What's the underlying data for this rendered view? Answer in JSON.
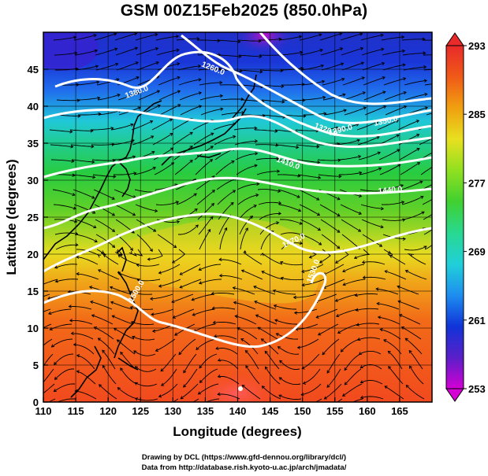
{
  "title": "GSM 00Z15Feb2025 (850.0hPa)",
  "xaxis": {
    "label": "Longitude (degrees)",
    "range": [
      110,
      170
    ],
    "ticks": [
      "110",
      "115",
      "120",
      "125",
      "130",
      "135",
      "140",
      "145",
      "150",
      "155",
      "160",
      "165"
    ]
  },
  "yaxis": {
    "label": "Latitude  (degrees)",
    "range": [
      0,
      50
    ],
    "ticks": [
      "0",
      "5",
      "10",
      "15",
      "20",
      "25",
      "30",
      "35",
      "40",
      "45"
    ]
  },
  "colorbar": {
    "ticks": [
      "253",
      "261",
      "269",
      "277",
      "285",
      "293"
    ],
    "range": [
      253,
      293
    ],
    "colors": [
      "#d400d4",
      "#5a1fc8",
      "#1034d8",
      "#1e8ef0",
      "#20d0d8",
      "#28d890",
      "#40d030",
      "#90e020",
      "#e8e020",
      "#f0a010",
      "#f05a18",
      "#e82a2a"
    ]
  },
  "contours": [
    {
      "label": "1260.0"
    },
    {
      "label": "1290.0"
    },
    {
      "label": "1320.0"
    },
    {
      "label": "1350.0"
    },
    {
      "label": "1380.0"
    },
    {
      "label": "1410.0"
    },
    {
      "label": "1440.0"
    },
    {
      "label": "1470.0"
    },
    {
      "label": "1500.0"
    },
    {
      "label": "1530.0"
    }
  ],
  "credits": {
    "line1": "Drawing by DCL (https://www.gfd-dennou.org/library/dcl/)",
    "line2": "Data from http://database.rish.kyoto-u.ac.jp/arch/jmadata/"
  }
}
